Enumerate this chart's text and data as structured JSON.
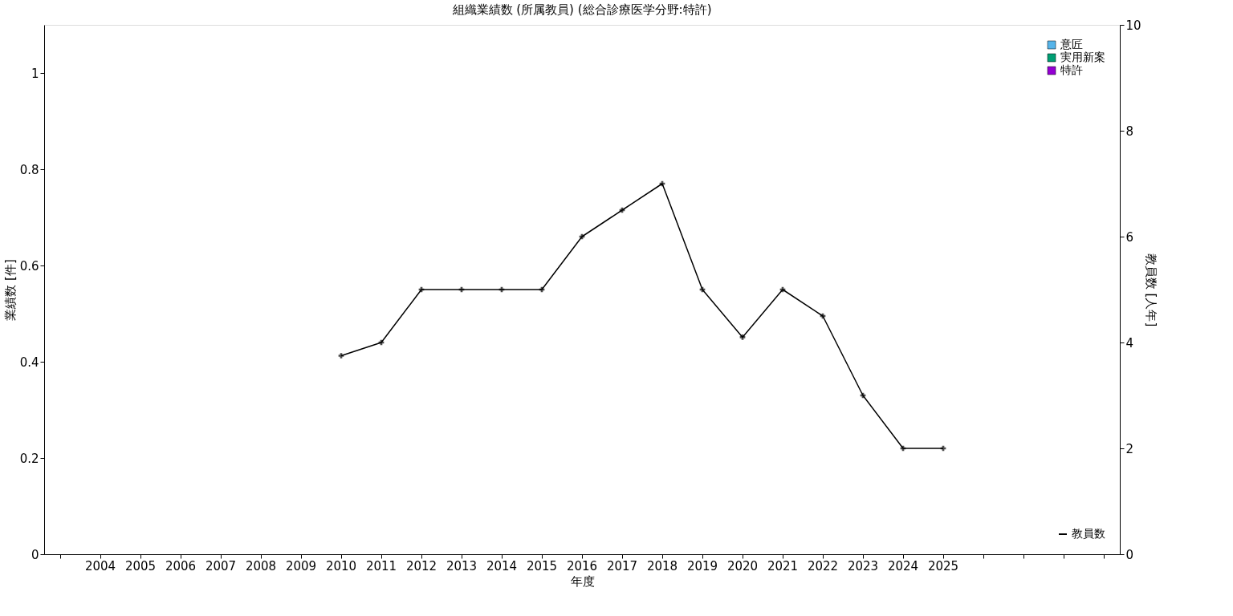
{
  "chart_data": {
    "type": "bar",
    "title": "組織業績数 (所属教員) (総合診療医学分野:特許)",
    "xlabel": "年度",
    "ylabel": "業績数 [件]",
    "y2label": "教員数 [人年]",
    "categories": [
      null,
      "2004",
      "2005",
      "2006",
      "2007",
      "2008",
      "2009",
      "2010",
      "2011",
      "2012",
      "2013",
      "2014",
      "2015",
      "2016",
      "2017",
      "2018",
      "2019",
      "2020",
      "2021",
      "2022",
      "2023",
      "2024",
      "2025",
      null,
      null,
      null,
      null
    ],
    "series": [
      {
        "name": "意匠",
        "color": "#56b4e9",
        "values": [
          null,
          0,
          0,
          0,
          0,
          0,
          0,
          0,
          0,
          0,
          0,
          0,
          0,
          0,
          0,
          0,
          0,
          0,
          0,
          0,
          0,
          0,
          0,
          null,
          null,
          null,
          null
        ]
      },
      {
        "name": "実用新案",
        "color": "#009e73",
        "values": [
          null,
          0,
          0,
          0,
          0,
          0,
          0,
          0,
          0,
          0,
          0,
          0,
          0,
          0,
          0,
          0,
          0,
          0,
          0,
          0,
          0,
          0,
          0,
          null,
          null,
          null,
          null
        ]
      },
      {
        "name": "特許",
        "color": "#9400d3",
        "values": [
          null,
          0,
          0,
          0,
          0,
          0,
          0,
          0,
          0,
          0,
          0,
          0,
          0,
          0,
          0,
          0,
          0,
          0,
          0,
          0,
          0,
          0,
          0,
          null,
          null,
          null,
          null
        ]
      },
      {
        "name": "教員数",
        "color": "#000000",
        "type": "line",
        "axis": "y2",
        "marker": "cross",
        "values": [
          null,
          null,
          null,
          null,
          null,
          null,
          null,
          3.75,
          4.0,
          5.0,
          5.0,
          5.0,
          5.0,
          6.0,
          6.5,
          7.0,
          5.0,
          4.1,
          5.0,
          4.5,
          3.0,
          2.0,
          2.0,
          null,
          null,
          null,
          null
        ]
      }
    ],
    "ylim": [
      0,
      1.1
    ],
    "yticks": [
      0,
      0.2,
      0.4,
      0.6,
      0.8,
      1
    ],
    "y2lim": [
      0,
      10
    ],
    "y2ticks": [
      0,
      2,
      4,
      6,
      8,
      10
    ],
    "grid": false,
    "legend": "top right"
  }
}
